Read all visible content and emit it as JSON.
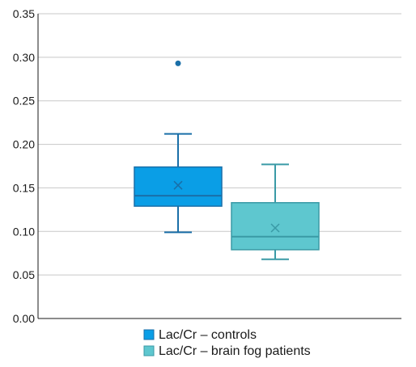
{
  "chart_data": {
    "type": "box",
    "title": "",
    "xlabel": "",
    "ylabel": "",
    "ylim": [
      0,
      0.35
    ],
    "yticks": [
      0,
      0.05,
      0.1,
      0.15,
      0.2,
      0.25,
      0.3,
      0.35
    ],
    "ytick_labels": [
      "0.00",
      "0.05",
      "0.10",
      "0.15",
      "0.20",
      "0.25",
      "0.30",
      "0.35"
    ],
    "grid": true,
    "legend_position": "bottom",
    "series": [
      {
        "name": "Lac/Cr – controls",
        "color": "#0a9ee6",
        "edge_color": "#1a6fa8",
        "whisker_low": 0.099,
        "q1": 0.129,
        "median": 0.141,
        "q3": 0.174,
        "whisker_high": 0.212,
        "mean": 0.153,
        "outliers": [
          0.293
        ]
      },
      {
        "name": "Lac/Cr – brain fog patients",
        "color": "#5ec7cf",
        "edge_color": "#3a9aa6",
        "whisker_low": 0.068,
        "q1": 0.079,
        "median": 0.094,
        "q3": 0.133,
        "whisker_high": 0.177,
        "mean": 0.104,
        "outliers": []
      }
    ]
  }
}
